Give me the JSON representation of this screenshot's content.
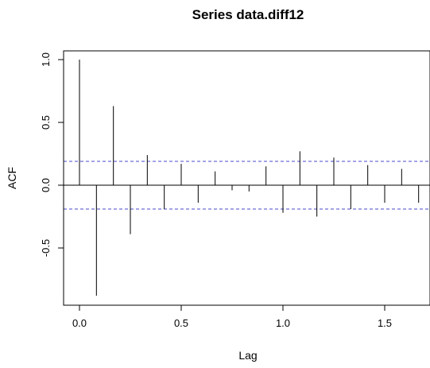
{
  "chart_data": {
    "type": "bar",
    "title": "Series  data.diff12",
    "xlabel": "Lag",
    "ylabel": "ACF",
    "xlim": [
      -0.07,
      1.7
    ],
    "ylim": [
      -0.9,
      1.03
    ],
    "x_ticks": [
      0.0,
      0.5,
      1.0,
      1.5
    ],
    "x_tick_labels": [
      "0.0",
      "0.5",
      "1.0",
      "1.5"
    ],
    "y_ticks": [
      -0.5,
      0.0,
      0.5,
      1.0
    ],
    "y_tick_labels": [
      "-0.5",
      "0.0",
      "0.5",
      "1.0"
    ],
    "confidence_bounds": [
      0.19,
      -0.19
    ],
    "colors": {
      "spikes": "#000000",
      "bounds": "#4a4acc",
      "zero_line": "#000000"
    },
    "series": [
      {
        "x": [
          0.0,
          0.0833,
          0.1667,
          0.25,
          0.3333,
          0.4167,
          0.5,
          0.5833,
          0.6667,
          0.75,
          0.8333,
          0.9167,
          1.0,
          1.0833,
          1.1667,
          1.25,
          1.3333,
          1.4167,
          1.5,
          1.5833,
          1.6667
        ],
        "values": [
          1.0,
          -0.88,
          0.63,
          -0.39,
          0.24,
          -0.19,
          0.17,
          -0.14,
          0.11,
          -0.04,
          -0.05,
          0.15,
          -0.22,
          0.27,
          -0.25,
          0.22,
          -0.19,
          0.16,
          -0.14,
          0.13,
          -0.14
        ]
      }
    ]
  }
}
